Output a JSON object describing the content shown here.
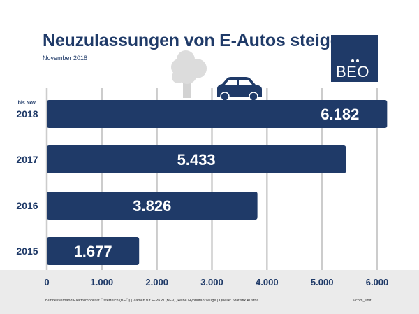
{
  "header": {
    "title": "Neuzulassungen von E-Autos steigen",
    "subtitle": "November 2018"
  },
  "logo": {
    "text": "BEO",
    "color": "#1f3a68"
  },
  "footer": {
    "note": "Bundesverband Elektromobilität Österreich (BEÖ) | Zahlen für E-PKW (BEV), keine Hybridfahrzeuge | Quelle: Statistik Austria",
    "credit": "©com_unit"
  },
  "icons": [
    "tree-icon",
    "car-icon"
  ],
  "colors": {
    "bar": "#1f3a68",
    "grid": "#cccccc",
    "text": "#1f3a68",
    "footer_bg": "#ebebeb"
  },
  "chart_data": {
    "type": "bar",
    "orientation": "horizontal",
    "title": "Neuzulassungen von E-Autos steigen",
    "categories": [
      "2018",
      "2017",
      "2016",
      "2015"
    ],
    "category_note": {
      "2018": "bis Nov."
    },
    "values": [
      6182,
      5433,
      3826,
      1677
    ],
    "value_labels": [
      "6.182",
      "5.433",
      "3.826",
      "1.677"
    ],
    "xlim": [
      0,
      6000
    ],
    "xticks": [
      0,
      1000,
      2000,
      3000,
      4000,
      5000,
      6000
    ],
    "xtick_labels": [
      "0",
      "1.000",
      "2.000",
      "3.000",
      "4.000",
      "5.000",
      "6.000"
    ],
    "grid": true,
    "legend": "none"
  }
}
